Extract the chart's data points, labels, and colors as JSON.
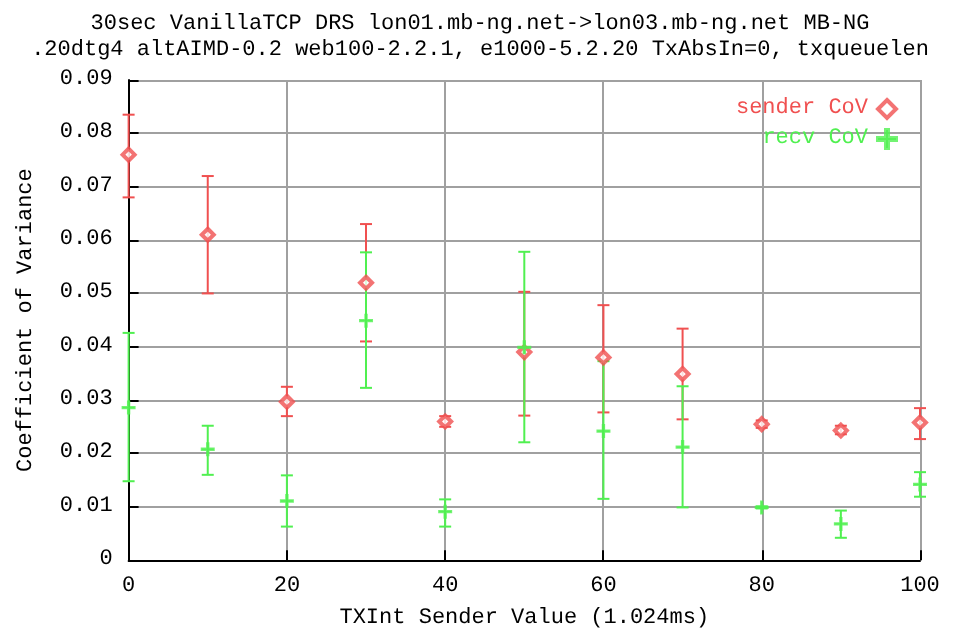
{
  "chart_data": {
    "type": "scatter",
    "title": "30sec VanillaTCP DRS lon01.mb-ng.net->lon03.mb-ng.net MB-NG",
    "subtitle": ".20dtg4 altAIMD-0.2 web100-2.2.1, e1000-5.2.20 TxAbsIn=0, txqueuelen",
    "xlabel": "TXInt Sender Value (1.024ms)",
    "ylabel": "Coefficient of Variance",
    "x": [
      0,
      10,
      20,
      30,
      40,
      50,
      60,
      70,
      80,
      90,
      100
    ],
    "series": [
      {
        "name": "sender CoV",
        "color": "#f05050",
        "marker": "diamond",
        "values": [
          0.076,
          0.061,
          0.0297,
          0.052,
          0.026,
          0.039,
          0.038,
          0.0349,
          0.0255,
          0.0243,
          0.0258
        ],
        "errors": [
          [
            0.068,
            0.0835
          ],
          [
            0.05,
            0.072
          ],
          [
            0.027,
            0.0325
          ],
          [
            0.041,
            0.063
          ],
          [
            0.025,
            0.027
          ],
          [
            0.0271,
            0.0503
          ],
          [
            0.0277,
            0.0478
          ],
          [
            0.0264,
            0.0434
          ],
          [
            0.0248,
            0.0262
          ],
          [
            0.0236,
            0.0252
          ],
          [
            0.0227,
            0.0285
          ]
        ]
      },
      {
        "name": "recv CoV",
        "color": "#50f050",
        "marker": "cross",
        "values": [
          0.0286,
          0.0208,
          0.0111,
          0.0449,
          0.0091,
          0.0399,
          0.0242,
          0.0212,
          0.0099,
          0.0068,
          0.0142
        ],
        "errors": [
          [
            0.0148,
            0.0426
          ],
          [
            0.016,
            0.0252
          ],
          [
            0.0063,
            0.0159
          ],
          [
            0.0323,
            0.0577
          ],
          [
            0.0063,
            0.0114
          ],
          [
            0.0221,
            0.0578
          ],
          [
            0.0115,
            0.0373
          ],
          [
            0.0099,
            0.0326
          ],
          [
            0.0097,
            0.0101
          ],
          [
            0.0042,
            0.0093
          ],
          [
            0.0119,
            0.0165
          ]
        ]
      }
    ],
    "xlim": [
      0,
      100
    ],
    "xticks": [
      0,
      20,
      40,
      60,
      80,
      100
    ],
    "ylim": [
      0,
      0.09
    ],
    "yticks": [
      0,
      0.01,
      0.02,
      0.03,
      0.04,
      0.05,
      0.06,
      0.07,
      0.08,
      0.09
    ],
    "grid": true,
    "legend": "top right"
  }
}
